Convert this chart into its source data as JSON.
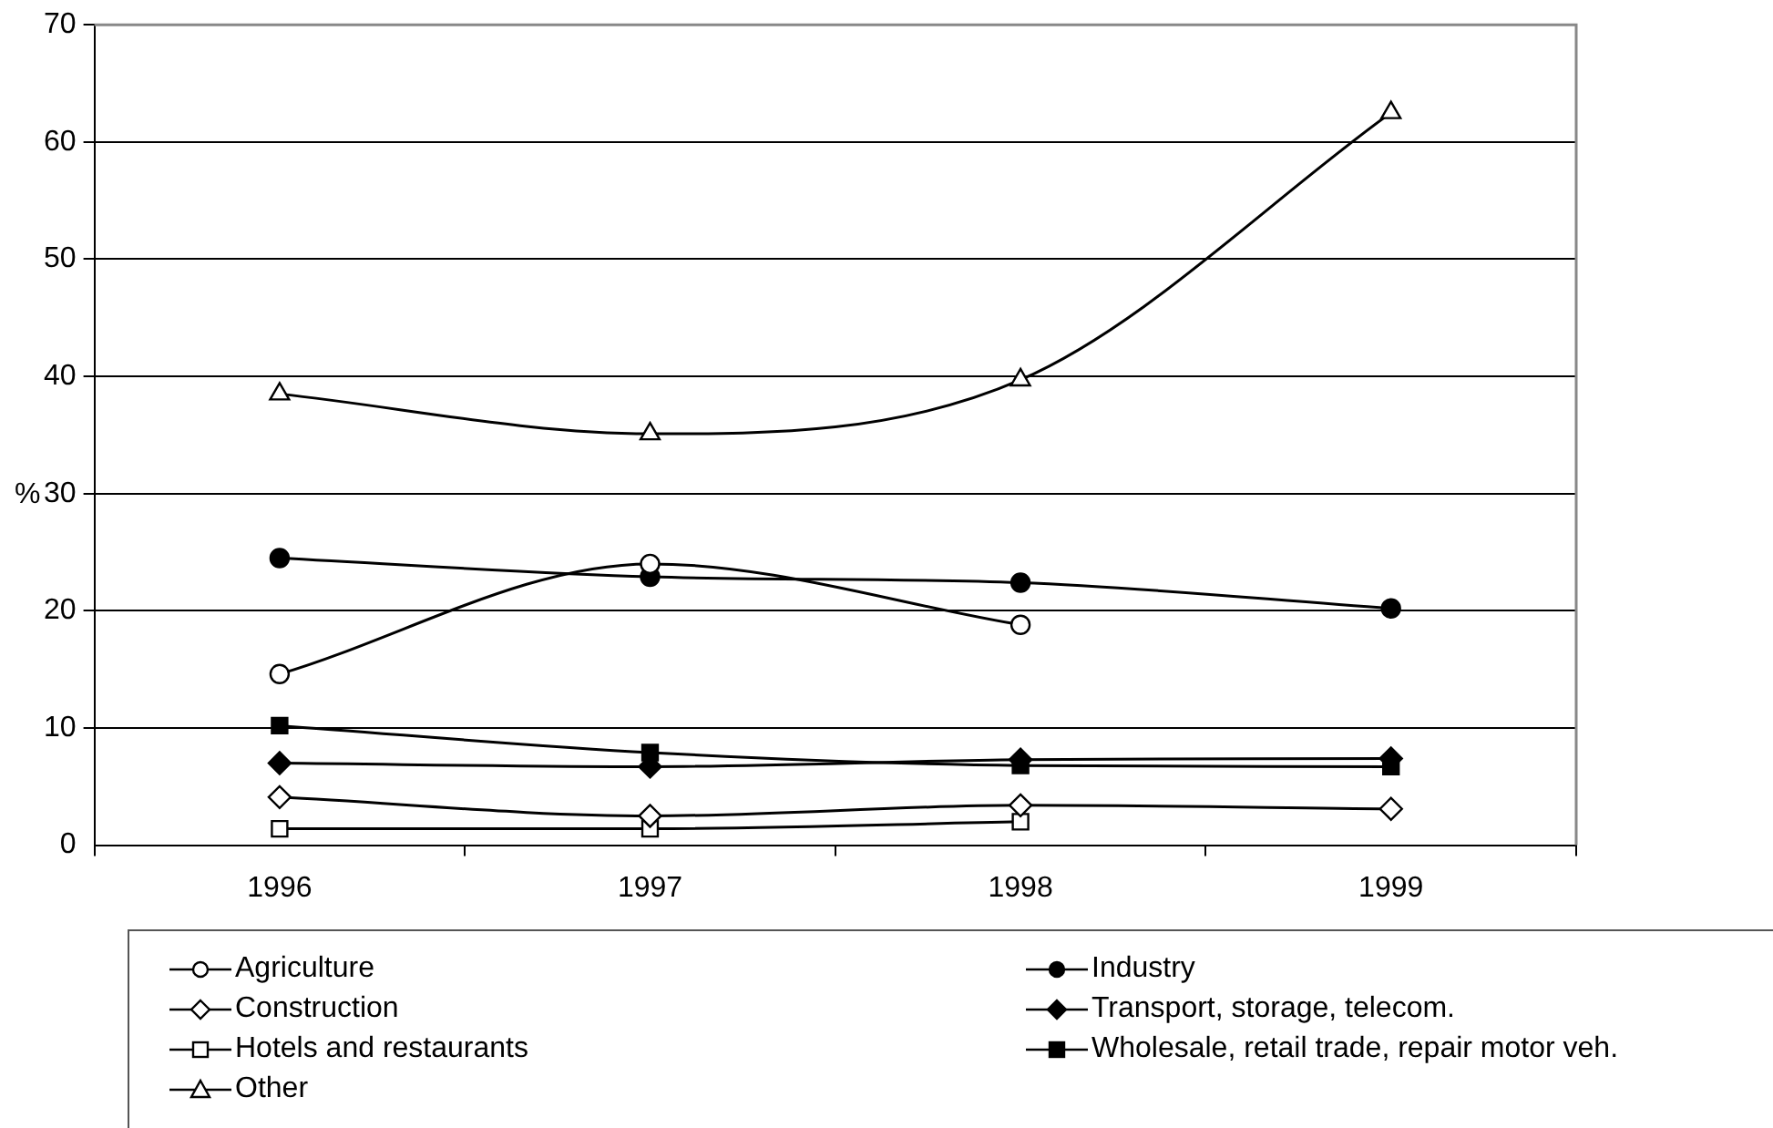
{
  "chart_data": {
    "type": "line",
    "ylabel": "%",
    "categories": [
      "1996",
      "1997",
      "1998",
      "1999"
    ],
    "ylim": [
      0,
      70
    ],
    "yticks": [
      0,
      10,
      20,
      30,
      40,
      50,
      60,
      70
    ],
    "grid": "y",
    "legend": "bottom",
    "line_style": "solid",
    "series": [
      {
        "name": "Agriculture",
        "color": "#000000",
        "marker": "circle",
        "values": [
          14.6,
          24.0,
          18.8,
          null
        ]
      },
      {
        "name": "Industry",
        "color": "#000000",
        "marker": "circle",
        "values": [
          24.5,
          22.9,
          22.4,
          20.2
        ]
      },
      {
        "name": "Construction",
        "color": "#000000",
        "marker": "diamond",
        "values": [
          4.1,
          2.5,
          3.4,
          3.1
        ]
      },
      {
        "name": "Transport, storage, telecom.",
        "color": "#000000",
        "marker": "diamond",
        "values": [
          7.0,
          6.7,
          7.3,
          7.4
        ]
      },
      {
        "name": "Hotels and restaurants",
        "color": "#000000",
        "marker": "square",
        "values": [
          1.4,
          1.4,
          2.0,
          null
        ]
      },
      {
        "name": "Wholesale, retail trade, repair motor veh.",
        "color": "#000000",
        "marker": "square",
        "values": [
          10.2,
          7.9,
          6.8,
          6.7
        ]
      },
      {
        "name": "Other",
        "color": "#000000",
        "marker": "triangle",
        "values": [
          38.5,
          35.1,
          39.7,
          62.5
        ]
      }
    ]
  }
}
